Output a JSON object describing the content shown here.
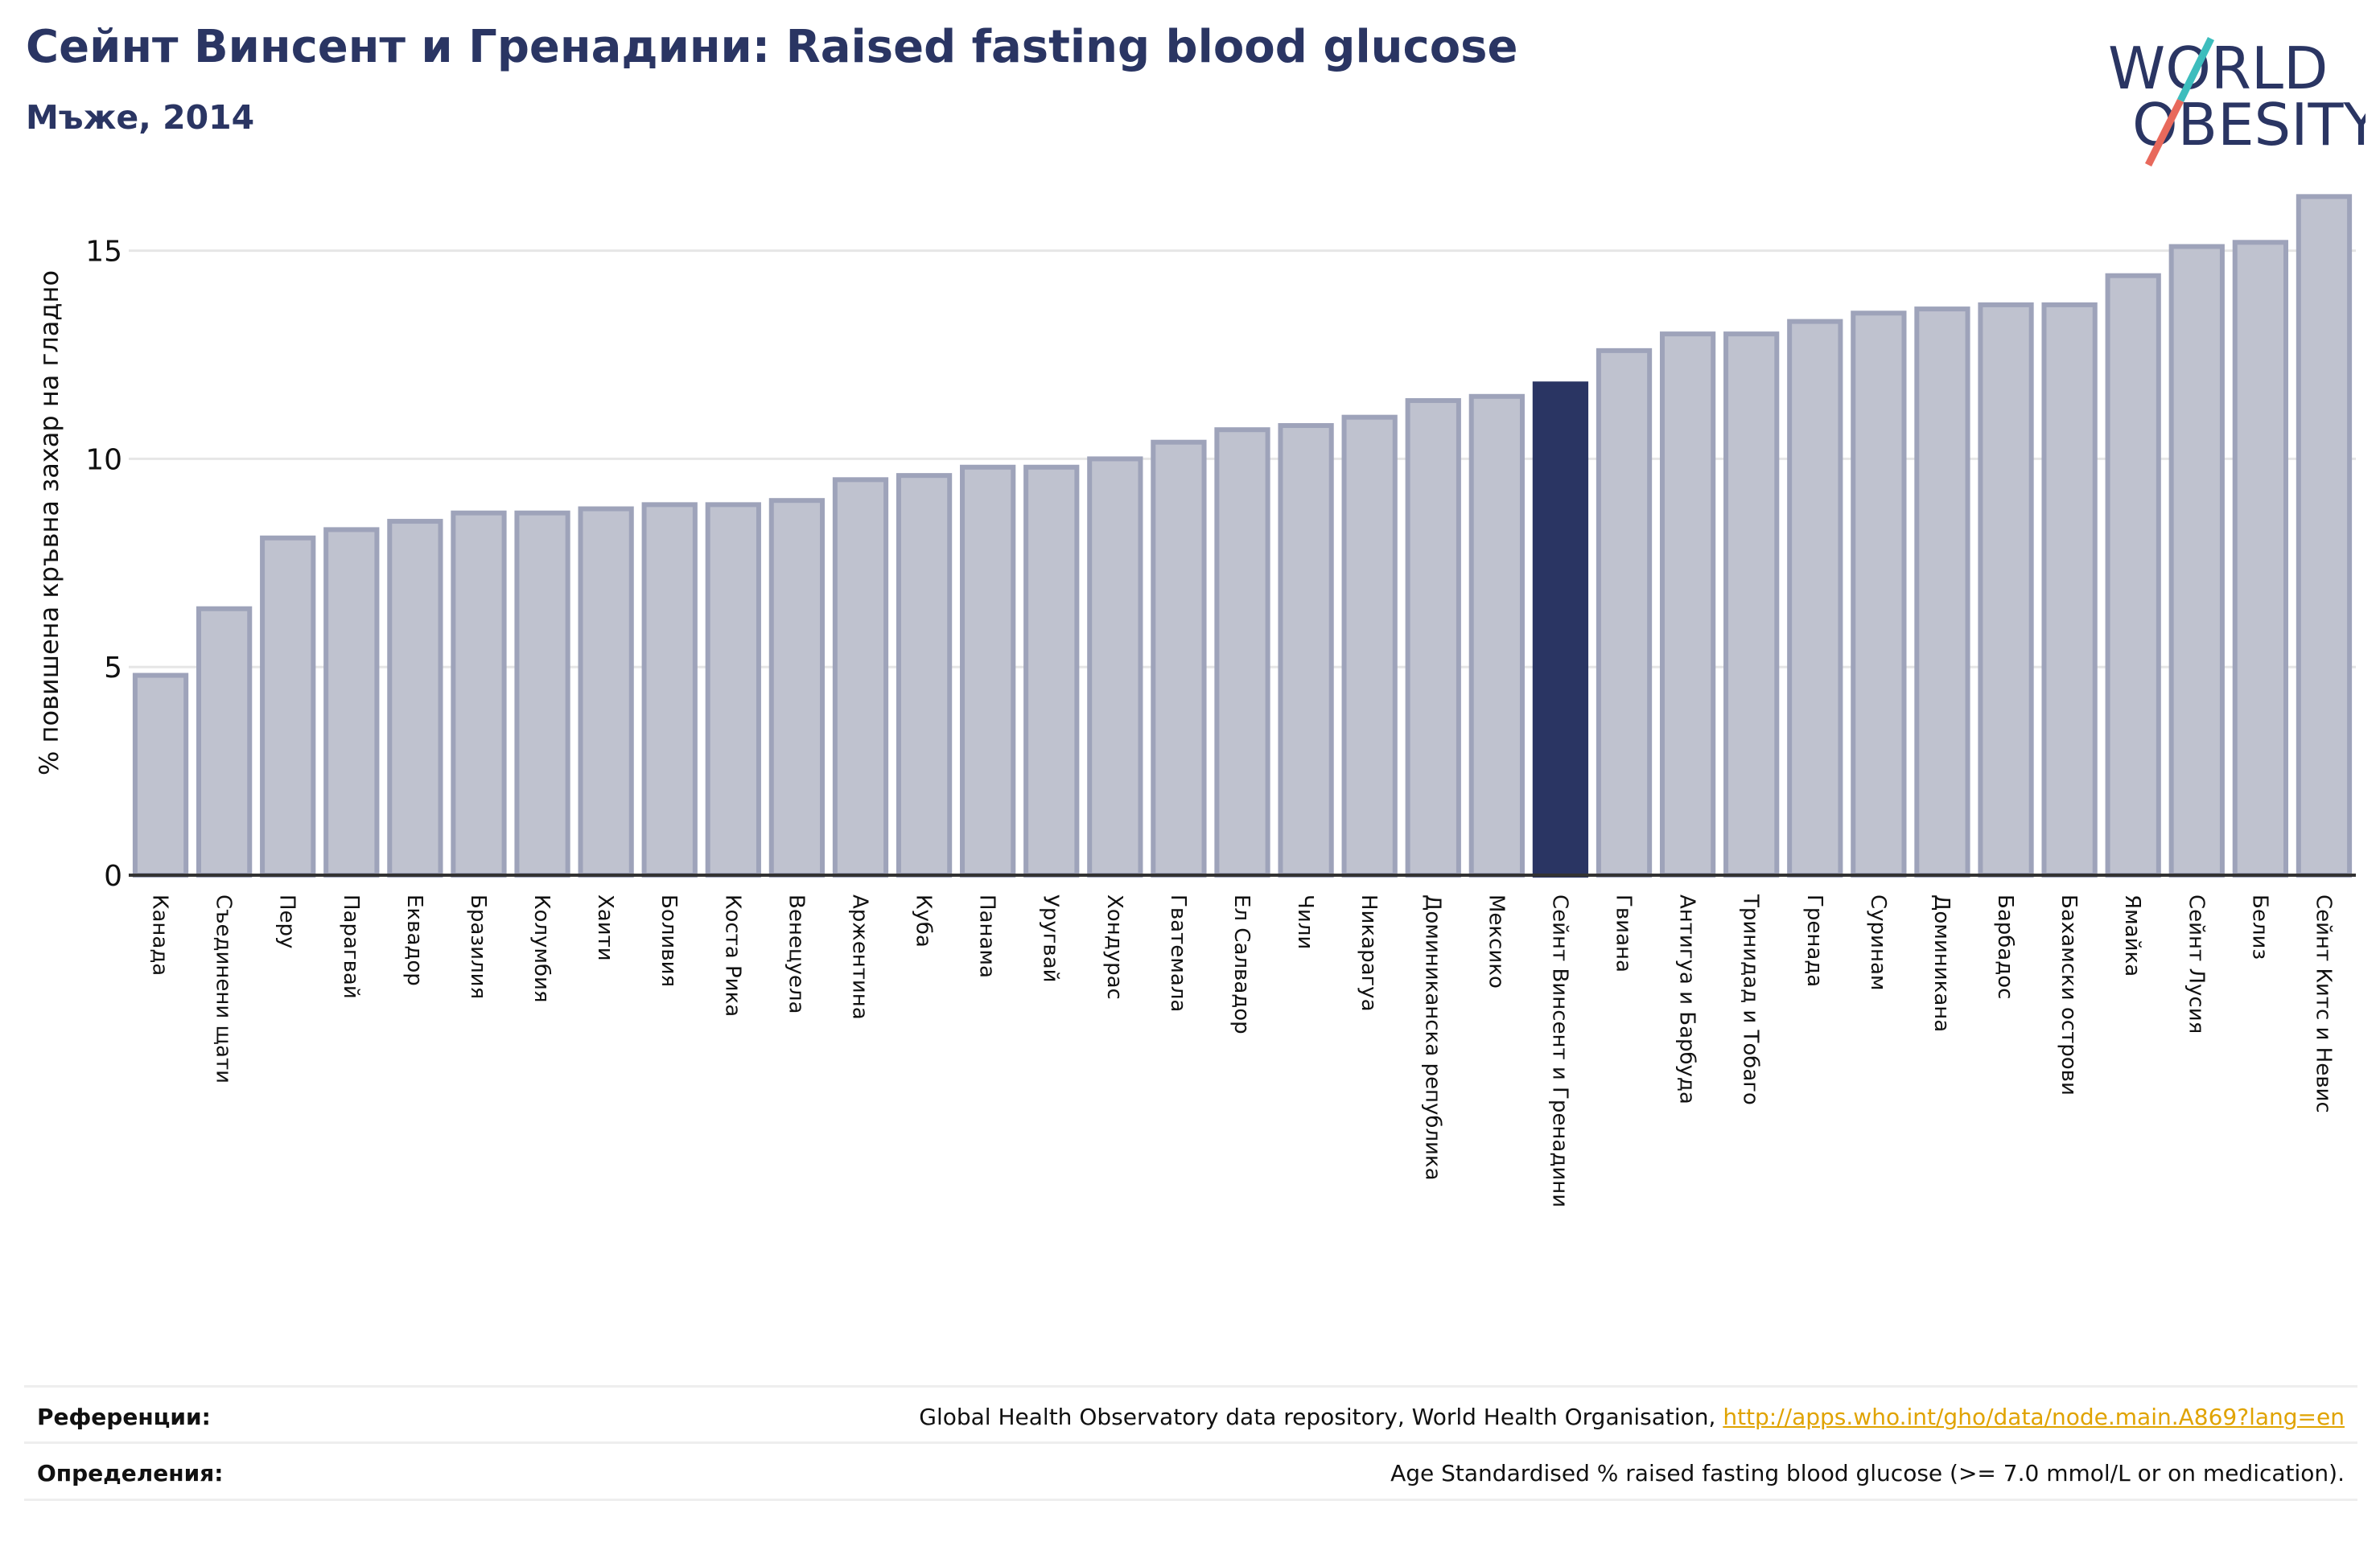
{
  "header": {
    "title": "Сейнт Винсент и Гренадини: Raised fasting blood glucose",
    "subtitle": "Мъже, 2014"
  },
  "logo": {
    "line1": "WORLD",
    "line2": "OBESITY",
    "colors": {
      "text": "#2a3563",
      "slash_top": "#3dbdbd",
      "slash_bottom": "#e8695c"
    }
  },
  "chart_data": {
    "type": "bar",
    "title": "",
    "xlabel": "",
    "ylabel": "% повишена кръвна захар на гладно",
    "ylim": [
      0,
      16.5
    ],
    "yticks": [
      0,
      5,
      10,
      15
    ],
    "grid": true,
    "categories": [
      "Канада",
      "Съединени щати",
      "Перу",
      "Парагвай",
      "Еквадор",
      "Бразилия",
      "Колумбия",
      "Хаити",
      "Боливия",
      "Коста Рика",
      "Венецуела",
      "Аржентина",
      "Куба",
      "Панама",
      "Уругвай",
      "Хондурас",
      "Гватемала",
      "Ел Салвадор",
      "Чили",
      "Никарагуа",
      "Доминиканска република",
      "Мексико",
      "Сейнт Винсент и Гренадини",
      "Гвиана",
      "Антигуа и Барбуда",
      "Тринидад и Тобаго",
      "Гренада",
      "Суринам",
      "Доминикана",
      "Барбадос",
      "Бахамски острови",
      "Ямайка",
      "Сейнт Лусия",
      "Белиз",
      "Сейнт Китс и Невис"
    ],
    "values": [
      4.8,
      6.4,
      8.1,
      8.3,
      8.5,
      8.7,
      8.7,
      8.8,
      8.9,
      8.9,
      9.0,
      9.5,
      9.6,
      9.8,
      9.8,
      10.0,
      10.4,
      10.7,
      10.8,
      11.0,
      11.4,
      11.5,
      11.8,
      12.6,
      13.0,
      13.0,
      13.3,
      13.5,
      13.6,
      13.7,
      13.7,
      14.4,
      15.1,
      15.2,
      16.3
    ],
    "highlight": "Сейнт Винсент и Гренадини",
    "colors": {
      "bar": "#bfc2cf",
      "bar_edge": "#9ea3ba",
      "highlight": "#2a3563",
      "grid": "#e6e6e6",
      "axis": "#333333"
    }
  },
  "footer": {
    "references_label": "Референции:",
    "references_text": "Global Health Observatory data repository, World Health Organisation, ",
    "references_link": "http://apps.who.int/gho/data/node.main.A869?lang=en",
    "definitions_label": "Определения:",
    "definitions_text": "Age Standardised % raised fasting blood glucose (>= 7.0 mmol/L or on medication)."
  }
}
